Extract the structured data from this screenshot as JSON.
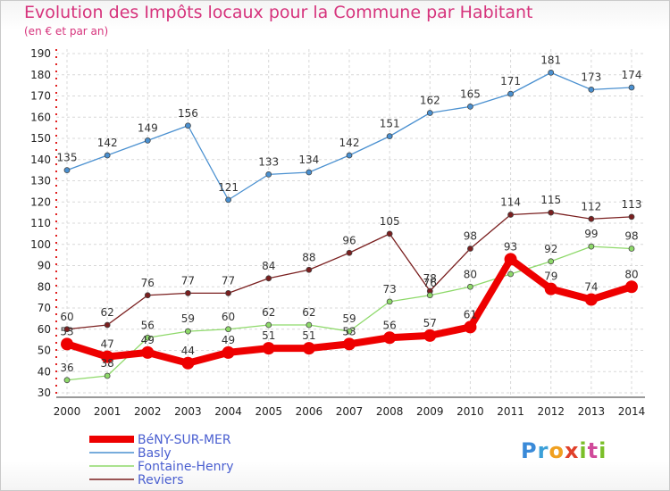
{
  "header": {
    "title": "Evolution des Impôts locaux pour la Commune par Habitant",
    "subtitle": "(en € et par an)"
  },
  "logo": {
    "text": "Proxiti"
  },
  "chart_data": {
    "type": "line",
    "title": "Evolution des Impôts locaux pour la Commune par Habitant",
    "subtitle": "(en € et par an)",
    "xlabel": "",
    "ylabel": "",
    "x": [
      "2000",
      "2001",
      "2002",
      "2003",
      "2004",
      "2005",
      "2006",
      "2007",
      "2008",
      "2009",
      "2010",
      "2011",
      "2012",
      "2013",
      "2014"
    ],
    "ylim": [
      30,
      190
    ],
    "yticks": [
      30,
      40,
      50,
      60,
      70,
      80,
      90,
      100,
      110,
      120,
      130,
      140,
      150,
      160,
      170,
      180,
      190
    ],
    "grid": true,
    "legend": "bottom-left",
    "series": [
      {
        "name": "Reviers",
        "color": "#7a1f1f",
        "values": [
          60,
          62,
          76,
          77,
          77,
          84,
          88,
          96,
          105,
          78,
          98,
          114,
          115,
          112,
          113
        ]
      },
      {
        "name": "Fontaine-Henry",
        "color": "#8ed96a",
        "values": [
          36,
          38,
          56,
          59,
          60,
          62,
          62,
          59,
          73,
          76,
          80,
          86,
          92,
          99,
          98
        ]
      },
      {
        "name": "Basly",
        "color": "#4a90d0",
        "values": [
          135,
          142,
          149,
          156,
          121,
          133,
          134,
          142,
          151,
          162,
          165,
          171,
          181,
          173,
          174
        ]
      },
      {
        "name": "BéNY-SUR-MER",
        "color": "#ee0000",
        "values": [
          53,
          47,
          49,
          44,
          49,
          51,
          51,
          53,
          56,
          57,
          61,
          93,
          79,
          74,
          80
        ]
      }
    ],
    "data_labels": [
      {
        "series": "Reviers",
        "shown": [
          60,
          62,
          76,
          77,
          77,
          84,
          88,
          96,
          105,
          78,
          98,
          114,
          115,
          112,
          113
        ]
      },
      {
        "series": "Fontaine-Henry",
        "shown": [
          36,
          38,
          56,
          59,
          60,
          62,
          62,
          59,
          73,
          76,
          80,
          null,
          92,
          99,
          98
        ]
      },
      {
        "series": "Basly",
        "shown": [
          135,
          142,
          149,
          156,
          121,
          133,
          134,
          142,
          151,
          162,
          165,
          171,
          181,
          173,
          174
        ]
      },
      {
        "series": "BéNY-SUR-MER",
        "shown": [
          53,
          47,
          49,
          44,
          49,
          51,
          51,
          53,
          56,
          57,
          61,
          93,
          79,
          74,
          80
        ]
      }
    ],
    "legend_order": [
      "BéNY-SUR-MER",
      "Basly",
      "Fontaine-Henry",
      "Reviers"
    ]
  }
}
